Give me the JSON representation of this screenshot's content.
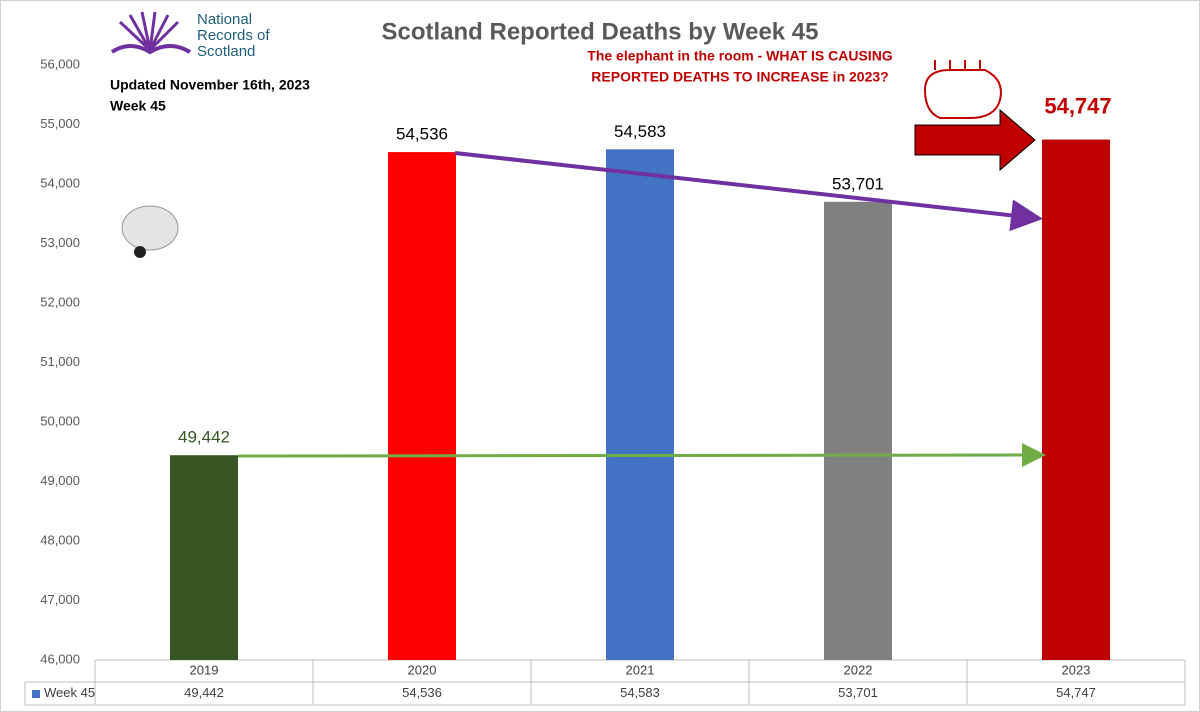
{
  "chart_data": {
    "type": "bar",
    "title": "Scotland Reported Deaths by Week 45",
    "categories": [
      "2019",
      "2020",
      "2021",
      "2022",
      "2023"
    ],
    "series": [
      {
        "name": "Week 45",
        "color": "#4472c4",
        "values": [
          49442,
          54536,
          54583,
          53701,
          54747
        ],
        "value_labels": [
          "49,442",
          "54,536",
          "54,583",
          "53,701",
          "54,747"
        ]
      }
    ],
    "bar_colors": [
      "#375623",
      "#ff0000",
      "#4472c4",
      "#808080",
      "#c00000"
    ],
    "value_label_colors": [
      "#375623",
      "#000000",
      "#000000",
      "#000000",
      "#c00000"
    ],
    "ylim": [
      46000,
      56000
    ],
    "yticks": [
      {
        "value": 46000,
        "label": "46,000"
      },
      {
        "value": 47000,
        "label": "47,000"
      },
      {
        "value": 48000,
        "label": "48,000"
      },
      {
        "value": 49000,
        "label": "49,000"
      },
      {
        "value": 50000,
        "label": "50,000"
      },
      {
        "value": 51000,
        "label": "51,000"
      },
      {
        "value": 52000,
        "label": "52,000"
      },
      {
        "value": 53000,
        "label": "53,000"
      },
      {
        "value": 54000,
        "label": "54,000"
      },
      {
        "value": 55000,
        "label": "55,000"
      },
      {
        "value": 56000,
        "label": "56,000"
      }
    ],
    "grid": false,
    "annotations": [
      "Updated November 16th, 2023",
      "Week 45",
      "The elephant in the room - WHAT IS CAUSING",
      "REPORTED DEATHS TO INCREASE in 2023?"
    ],
    "logo": [
      "National",
      "Records of",
      "Scotland"
    ]
  }
}
